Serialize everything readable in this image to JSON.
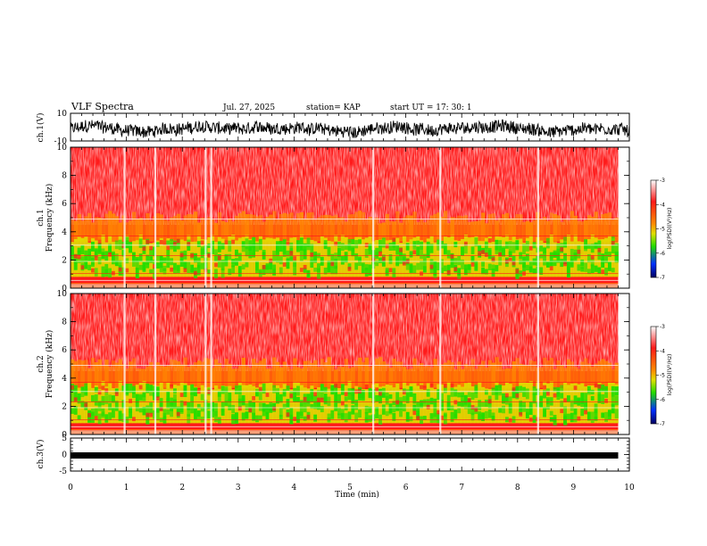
{
  "header": {
    "title": "VLF Spectra",
    "date": "Jul. 27, 2025",
    "station": "station= KAP",
    "start": "start UT =  17: 30: 1"
  },
  "chart_data": [
    {
      "type": "line",
      "id": "ch1-waveform",
      "ylabel": "ch.1(V)",
      "ylim": [
        -10,
        10
      ],
      "y_ticks": [
        "10",
        "-10"
      ],
      "xlim": [
        0,
        10
      ],
      "data_end_min": 9.8
    },
    {
      "type": "heatmap",
      "id": "ch1-spectrogram",
      "ylabel_top": "ch.1",
      "ylabel": "Frequency (kHz)",
      "ylim": [
        0,
        10
      ],
      "y_ticks": [
        "0",
        "2",
        "4",
        "6",
        "8",
        "10"
      ],
      "xlim": [
        0,
        10
      ],
      "data_end_min": 9.8,
      "colorbar": {
        "label": "log(PSD)(V²/Hz)",
        "ticks": [
          "-3",
          "-4",
          "-5",
          "-6",
          "-7"
        ],
        "range": [
          -7,
          -3
        ]
      }
    },
    {
      "type": "heatmap",
      "id": "ch2-spectrogram",
      "ylabel_top": "ch.2",
      "ylabel": "Frequency (kHz)",
      "ylim": [
        0,
        10
      ],
      "y_ticks": [
        "0",
        "2",
        "4",
        "6",
        "8",
        "10"
      ],
      "xlim": [
        0,
        10
      ],
      "data_end_min": 9.8,
      "colorbar": {
        "label": "log(PSD)(V²/Hz)",
        "ticks": [
          "-3",
          "-4",
          "-5",
          "-6",
          "-7"
        ],
        "range": [
          -7,
          -3
        ]
      }
    },
    {
      "type": "line",
      "id": "ch3-waveform",
      "ylabel": "ch.3(V)",
      "ylim": [
        -5,
        5
      ],
      "y_ticks": [
        "5",
        "0",
        "-5"
      ],
      "xlim": [
        0,
        10
      ],
      "data_end_min": 9.8
    }
  ],
  "x_axis": {
    "label": "Time (min)",
    "ticks": [
      "0",
      "1",
      "2",
      "3",
      "4",
      "5",
      "6",
      "7",
      "8",
      "9",
      "10"
    ]
  },
  "colors": {
    "red": "#ff1a1a",
    "orange": "#ff8c00",
    "yellow": "#e0e000",
    "green": "#22dd00",
    "blue": "#0030ff",
    "navy": "#000060"
  }
}
